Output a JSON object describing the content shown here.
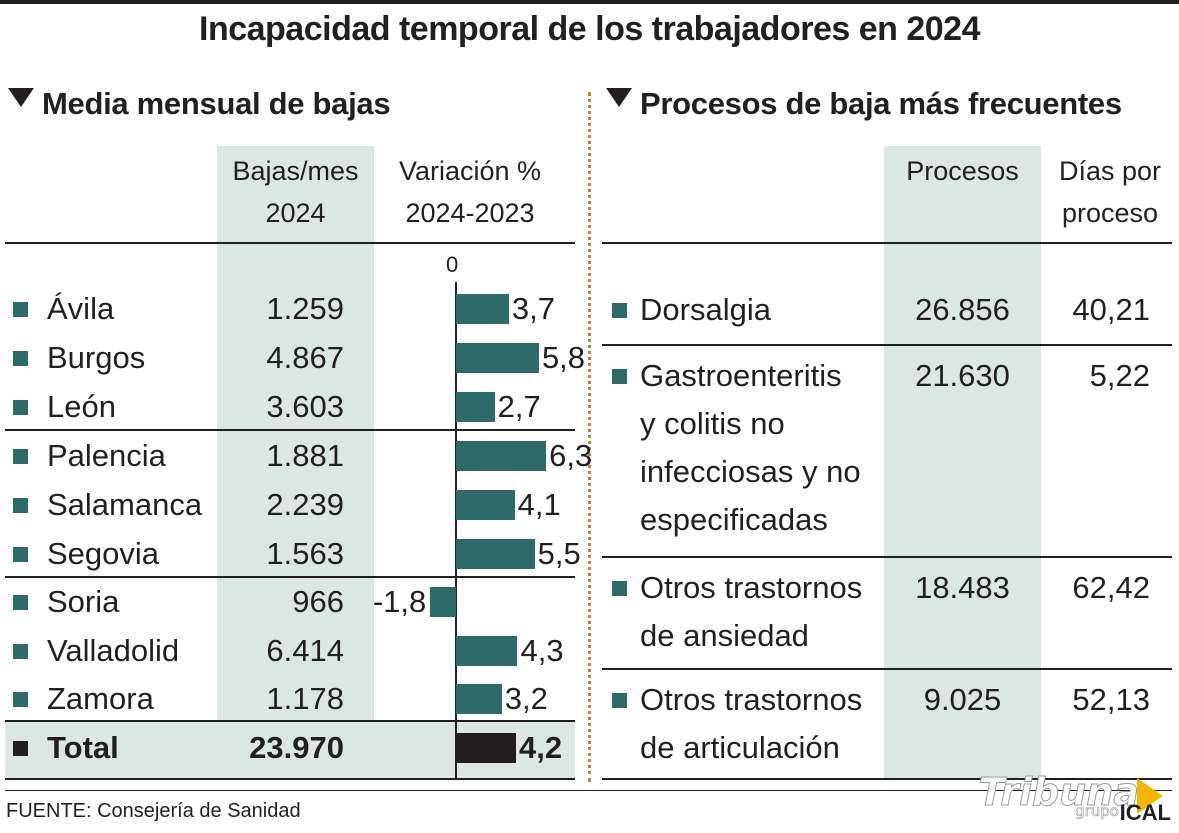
{
  "title": "Incapacidad temporal de los trabajadores en 2024",
  "left_section": {
    "heading": "Media mensual de bajas",
    "col1_line1": "Bajas/mes",
    "col1_line2": "2024",
    "col2_line1": "Variación %",
    "col2_line2": "2024-2023",
    "axis_zero": "0"
  },
  "right_section": {
    "heading": "Procesos de baja más frecuentes",
    "col1": "Procesos",
    "col2_line1": "Días por",
    "col2_line2": "proceso",
    "rows": [
      {
        "lines": [
          "Dorsalgia"
        ],
        "procesos": "26.856",
        "dias": "40,21"
      },
      {
        "lines": [
          "Gastroenteritis",
          "y colitis no",
          "infecciosas y no",
          "especificadas"
        ],
        "procesos": "21.630",
        "dias": "5,22"
      },
      {
        "lines": [
          "Otros trastornos",
          "de ansiedad"
        ],
        "procesos": "18.483",
        "dias": "62,42"
      },
      {
        "lines": [
          "Otros trastornos",
          "de articulación"
        ],
        "procesos": "9.025",
        "dias": "52,13"
      }
    ]
  },
  "source": "FUENTE: Consejería de Sanidad",
  "logo_text": "Tribuna",
  "logo_sub": "grupo",
  "agency": "ICAL",
  "colors": {
    "accent": "#2d6b6b",
    "band": "#dce7e4",
    "total_bar": "#231f20",
    "divider": "#b08a3a"
  },
  "chart_data": {
    "type": "bar",
    "title": "Media mensual de bajas",
    "categories": [
      "Ávila",
      "Burgos",
      "León",
      "Palencia",
      "Salamanca",
      "Segovia",
      "Soria",
      "Valladolid",
      "Zamora",
      "Total"
    ],
    "bajas_mes_2024": [
      "1.259",
      "4.867",
      "3.603",
      "1.881",
      "2.239",
      "1.563",
      "966",
      "6.414",
      "1.178",
      "23.970"
    ],
    "variation_labels": [
      "3,7",
      "5,8",
      "2,7",
      "6,3",
      "4,1",
      "5,5",
      "-1,8",
      "4,3",
      "3,2",
      "4,2"
    ],
    "series": [
      {
        "name": "Variación % 2024-2023",
        "values": [
          3.7,
          5.8,
          2.7,
          6.3,
          4.1,
          5.5,
          -1.8,
          4.3,
          3.2,
          4.2
        ]
      }
    ],
    "xlabel": "",
    "ylabel": ""
  }
}
